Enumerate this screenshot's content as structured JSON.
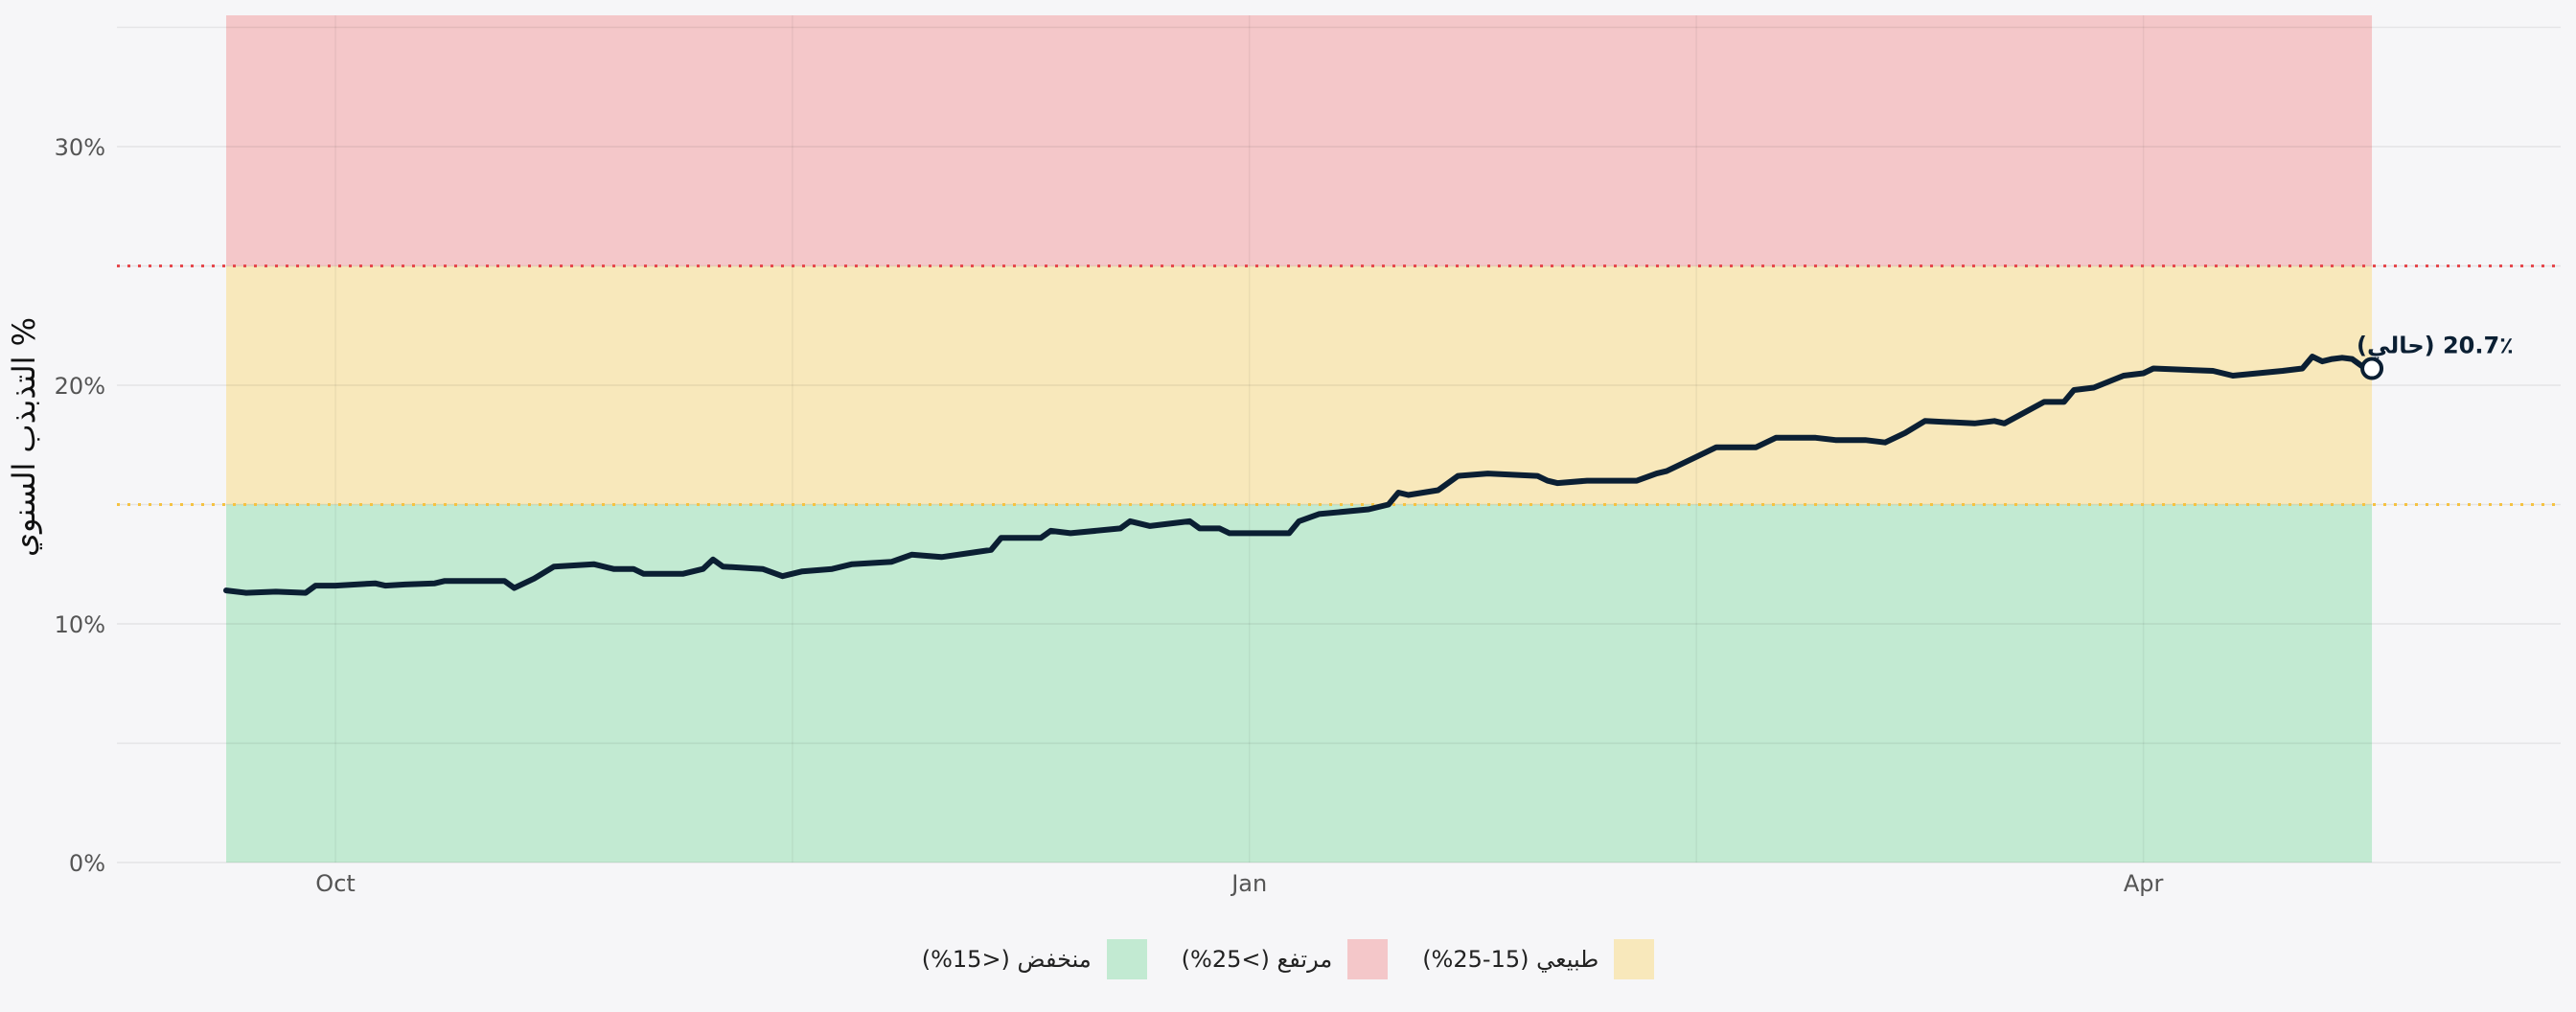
{
  "chart_data": {
    "type": "line",
    "title": "",
    "ylabel": "التذبذب السنوي %",
    "xlabel": "",
    "ylim": [
      0,
      35.5
    ],
    "xlim": [
      "2024-09-09",
      "2025-05-13"
    ],
    "y_ticks": [
      0,
      10,
      20,
      30
    ],
    "y_tick_labels": [
      "0%",
      "10%",
      "20%",
      "30%"
    ],
    "x_ticks": [
      {
        "date": "2024-10-01",
        "label": "Oct"
      },
      {
        "date": "2025-01-01",
        "label": "Jan"
      },
      {
        "date": "2025-04-01",
        "label": "Apr"
      }
    ],
    "x_grid_dates": [
      "2024-10-01",
      "2024-11-16",
      "2025-01-01",
      "2025-02-15",
      "2025-04-01"
    ],
    "data_start": "2024-09-20",
    "data_end": "2025-04-24",
    "bands": [
      {
        "name": "منخفض (<15%)",
        "from": 0,
        "to": 15,
        "color": "#c2ead2"
      },
      {
        "name": "طبيعي (15-25%)",
        "from": 15,
        "to": 25,
        "color": "#f8e8bb"
      },
      {
        "name": "مرتفع (>25%)",
        "from": 25,
        "to": 36.9,
        "color": "#f4c7c9"
      }
    ],
    "thresholds": [
      {
        "value": 15,
        "color": "#f5c242"
      },
      {
        "value": 25,
        "color": "#e5484d"
      }
    ],
    "series": [
      {
        "color": "#0b1f33",
        "points": [
          [
            "2024-09-20",
            11.4
          ],
          [
            "2024-09-22",
            11.3
          ],
          [
            "2024-09-25",
            11.35
          ],
          [
            "2024-09-28",
            11.3
          ],
          [
            "2024-09-29",
            11.6
          ],
          [
            "2024-10-01",
            11.6
          ],
          [
            "2024-10-05",
            11.7
          ],
          [
            "2024-10-06",
            11.6
          ],
          [
            "2024-10-08",
            11.65
          ],
          [
            "2024-10-11",
            11.7
          ],
          [
            "2024-10-12",
            11.8
          ],
          [
            "2024-10-15",
            11.8
          ],
          [
            "2024-10-18",
            11.8
          ],
          [
            "2024-10-19",
            11.5
          ],
          [
            "2024-10-21",
            11.9
          ],
          [
            "2024-10-23",
            12.4
          ],
          [
            "2024-10-27",
            12.5
          ],
          [
            "2024-10-29",
            12.3
          ],
          [
            "2024-10-31",
            12.3
          ],
          [
            "2024-11-01",
            12.1
          ],
          [
            "2024-11-05",
            12.1
          ],
          [
            "2024-11-07",
            12.3
          ],
          [
            "2024-11-08",
            12.7
          ],
          [
            "2024-11-09",
            12.4
          ],
          [
            "2024-11-13",
            12.3
          ],
          [
            "2024-11-15",
            12.0
          ],
          [
            "2024-11-17",
            12.2
          ],
          [
            "2024-11-20",
            12.3
          ],
          [
            "2024-11-22",
            12.5
          ],
          [
            "2024-11-26",
            12.6
          ],
          [
            "2024-11-28",
            12.9
          ],
          [
            "2024-12-01",
            12.8
          ],
          [
            "2024-12-06",
            13.1
          ],
          [
            "2024-12-07",
            13.6
          ],
          [
            "2024-12-11",
            13.6
          ],
          [
            "2024-12-12",
            13.9
          ],
          [
            "2024-12-14",
            13.8
          ],
          [
            "2024-12-19",
            14.0
          ],
          [
            "2024-12-20",
            14.3
          ],
          [
            "2024-12-22",
            14.1
          ],
          [
            "2024-12-26",
            14.3
          ],
          [
            "2024-12-27",
            14.0
          ],
          [
            "2024-12-29",
            14.0
          ],
          [
            "2024-12-30",
            13.8
          ],
          [
            "2025-01-02",
            13.8
          ],
          [
            "2025-01-05",
            13.8
          ],
          [
            "2025-01-06",
            14.3
          ],
          [
            "2025-01-08",
            14.6
          ],
          [
            "2025-01-13",
            14.8
          ],
          [
            "2025-01-15",
            15.0
          ],
          [
            "2025-01-16",
            15.5
          ],
          [
            "2025-01-17",
            15.4
          ],
          [
            "2025-01-20",
            15.6
          ],
          [
            "2025-01-22",
            16.2
          ],
          [
            "2025-01-25",
            16.3
          ],
          [
            "2025-01-30",
            16.2
          ],
          [
            "2025-01-31",
            16.0
          ],
          [
            "2025-02-01",
            15.9
          ],
          [
            "2025-02-04",
            16.0
          ],
          [
            "2025-02-09",
            16.0
          ],
          [
            "2025-02-11",
            16.3
          ],
          [
            "2025-02-12",
            16.4
          ],
          [
            "2025-02-15",
            17.0
          ],
          [
            "2025-02-17",
            17.4
          ],
          [
            "2025-02-21",
            17.4
          ],
          [
            "2025-02-23",
            17.8
          ],
          [
            "2025-02-27",
            17.8
          ],
          [
            "2025-03-01",
            17.7
          ],
          [
            "2025-03-04",
            17.7
          ],
          [
            "2025-03-06",
            17.6
          ],
          [
            "2025-03-08",
            18.0
          ],
          [
            "2025-03-10",
            18.5
          ],
          [
            "2025-03-15",
            18.4
          ],
          [
            "2025-03-17",
            18.5
          ],
          [
            "2025-03-18",
            18.4
          ],
          [
            "2025-03-22",
            19.3
          ],
          [
            "2025-03-24",
            19.3
          ],
          [
            "2025-03-25",
            19.8
          ],
          [
            "2025-03-27",
            19.9
          ],
          [
            "2025-03-30",
            20.4
          ],
          [
            "2025-04-01",
            20.5
          ],
          [
            "2025-04-02",
            20.7
          ],
          [
            "2025-04-08",
            20.6
          ],
          [
            "2025-04-10",
            20.4
          ],
          [
            "2025-04-15",
            20.6
          ],
          [
            "2025-04-17",
            20.7
          ],
          [
            "2025-04-18",
            21.2
          ],
          [
            "2025-04-19",
            21.0
          ],
          [
            "2025-04-20",
            21.1
          ],
          [
            "2025-04-21",
            21.15
          ],
          [
            "2025-04-22",
            21.1
          ],
          [
            "2025-04-23",
            20.8
          ],
          [
            "2025-04-24",
            20.7
          ]
        ]
      }
    ],
    "current_point": {
      "date": "2025-04-24",
      "value": 20.7,
      "label": "20.7٪ (حالي)"
    },
    "legend": [
      {
        "name": "طبيعي (15-25%)",
        "color": "#f8e8bb"
      },
      {
        "name": "مرتفع (>25%)",
        "color": "#f4c7c9"
      },
      {
        "name": "منخفض (<15%)",
        "color": "#c2ead2"
      }
    ],
    "legend_position": "bottom-center",
    "grid": true
  }
}
